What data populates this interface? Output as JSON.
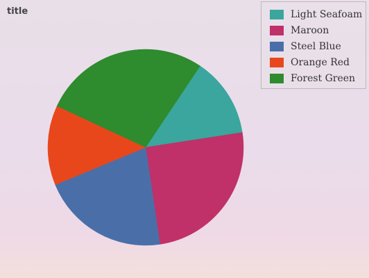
{
  "chart_data": {
    "type": "pie",
    "title": "title",
    "legend_position": "top-right",
    "slices": [
      {
        "name": "Light Seafoam",
        "value": 12.8,
        "color": "#3aa69e"
      },
      {
        "name": "Maroon",
        "value": 24.4,
        "color": "#bf3168"
      },
      {
        "name": "Steel Blue",
        "value": 20.5,
        "color": "#4a6fa8"
      },
      {
        "name": "Orange Red",
        "value": 12.8,
        "color": "#e8471c"
      },
      {
        "name": "Forest Green",
        "value": 26.7,
        "color": "#2e8b2e"
      }
    ]
  }
}
